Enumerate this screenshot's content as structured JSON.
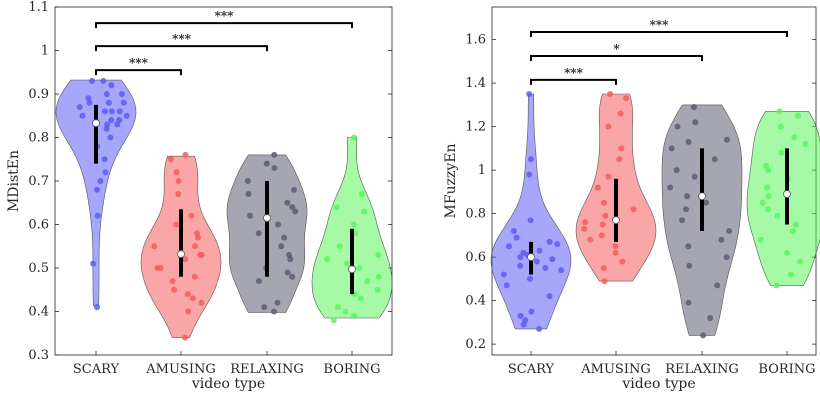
{
  "chart_data": [
    {
      "type": "violin",
      "ylabel": "MDistEn",
      "xlabel": "video type",
      "categories": [
        "SCARY",
        "AMUSING",
        "RELAXING",
        "BORING"
      ],
      "ylim": [
        0.3,
        1.1
      ],
      "yticks": [
        0.3,
        0.4,
        0.5,
        0.6,
        0.7,
        0.8,
        0.9,
        1,
        1.1
      ],
      "ytick_labels": [
        "0.3",
        "0.4",
        "0.5",
        "0.6",
        "0.7",
        "0.8",
        "0.9",
        "1",
        "1.1"
      ],
      "colors": [
        "#5c5cf5",
        "#f55c5c",
        "#5c5c75",
        "#5cf55c"
      ],
      "series": [
        {
          "category": "SCARY",
          "median": 0.833,
          "q1": 0.74,
          "q3": 0.875,
          "min": 0.413,
          "max": 0.932,
          "points": [
            0.83,
            0.86,
            0.85,
            0.9,
            0.92,
            0.93,
            0.88,
            0.84,
            0.82,
            0.86,
            0.8,
            0.87,
            0.84,
            0.88,
            0.83,
            0.89,
            0.9,
            0.83,
            0.75,
            0.72,
            0.7,
            0.78,
            0.62,
            0.68,
            0.51,
            0.41,
            0.86,
            0.93,
            0.85,
            0.88
          ]
        },
        {
          "category": "AMUSING",
          "median": 0.532,
          "q1": 0.48,
          "q3": 0.635,
          "min": 0.34,
          "max": 0.757,
          "points": [
            0.76,
            0.75,
            0.72,
            0.7,
            0.67,
            0.62,
            0.6,
            0.58,
            0.57,
            0.55,
            0.55,
            0.53,
            0.53,
            0.52,
            0.5,
            0.5,
            0.48,
            0.47,
            0.45,
            0.44,
            0.43,
            0.42,
            0.4,
            0.34
          ]
        },
        {
          "category": "RELAXING",
          "median": 0.615,
          "q1": 0.48,
          "q3": 0.7,
          "min": 0.398,
          "max": 0.76,
          "points": [
            0.76,
            0.74,
            0.73,
            0.7,
            0.68,
            0.67,
            0.65,
            0.64,
            0.63,
            0.62,
            0.6,
            0.58,
            0.57,
            0.55,
            0.53,
            0.52,
            0.5,
            0.49,
            0.48,
            0.47,
            0.42,
            0.41,
            0.4
          ]
        },
        {
          "category": "BORING",
          "median": 0.497,
          "q1": 0.44,
          "q3": 0.59,
          "min": 0.385,
          "max": 0.8,
          "points": [
            0.8,
            0.67,
            0.64,
            0.63,
            0.6,
            0.58,
            0.55,
            0.53,
            0.52,
            0.51,
            0.5,
            0.48,
            0.47,
            0.45,
            0.44,
            0.43,
            0.41,
            0.4,
            0.39,
            0.38
          ]
        }
      ],
      "significance": [
        {
          "from": "SCARY",
          "to": "AMUSING",
          "label": "***"
        },
        {
          "from": "SCARY",
          "to": "RELAXING",
          "label": "***"
        },
        {
          "from": "SCARY",
          "to": "BORING",
          "label": "***"
        }
      ]
    },
    {
      "type": "violin",
      "ylabel": "MFuzzyEn",
      "xlabel": "video type",
      "categories": [
        "SCARY",
        "AMUSING",
        "RELAXING",
        "BORING"
      ],
      "ylim": [
        0.15,
        1.75
      ],
      "yticks": [
        0.2,
        0.4,
        0.6,
        0.8,
        1,
        1.2,
        1.4,
        1.6
      ],
      "ytick_labels": [
        "0.2",
        "0.4",
        "0.6",
        "0.8",
        "1",
        "1.2",
        "1.4",
        "1.6"
      ],
      "colors": [
        "#5c5cf5",
        "#f55c5c",
        "#5c5c75",
        "#5cf55c"
      ],
      "series": [
        {
          "category": "SCARY",
          "median": 0.6,
          "q1": 0.52,
          "q3": 0.67,
          "min": 0.27,
          "max": 1.35,
          "points": [
            1.35,
            1.05,
            0.98,
            0.77,
            0.72,
            0.69,
            0.67,
            0.66,
            0.65,
            0.63,
            0.62,
            0.61,
            0.6,
            0.59,
            0.58,
            0.56,
            0.55,
            0.54,
            0.52,
            0.5,
            0.47,
            0.42,
            0.35,
            0.33,
            0.31,
            0.29,
            0.27
          ]
        },
        {
          "category": "AMUSING",
          "median": 0.77,
          "q1": 0.67,
          "q3": 0.96,
          "min": 0.49,
          "max": 1.35,
          "points": [
            1.35,
            1.33,
            1.26,
            1.2,
            1.1,
            1.05,
            0.97,
            0.92,
            0.85,
            0.82,
            0.79,
            0.76,
            0.75,
            0.73,
            0.7,
            0.68,
            0.65,
            0.62,
            0.58,
            0.55,
            0.49
          ]
        },
        {
          "category": "RELAXING",
          "median": 0.88,
          "q1": 0.72,
          "q3": 1.1,
          "min": 0.24,
          "max": 1.3,
          "points": [
            1.29,
            1.22,
            1.2,
            1.14,
            1.13,
            1.1,
            1.05,
            1.0,
            0.97,
            0.92,
            0.88,
            0.85,
            0.82,
            0.77,
            0.72,
            0.68,
            0.65,
            0.6,
            0.56,
            0.47,
            0.39,
            0.32,
            0.24
          ]
        },
        {
          "category": "BORING",
          "median": 0.89,
          "q1": 0.75,
          "q3": 1.1,
          "min": 0.47,
          "max": 1.27,
          "points": [
            1.27,
            1.25,
            1.2,
            1.15,
            1.12,
            1.08,
            1.02,
            1.0,
            0.96,
            0.92,
            0.88,
            0.85,
            0.82,
            0.79,
            0.75,
            0.72,
            0.68,
            0.62,
            0.58,
            0.52,
            0.47
          ]
        }
      ],
      "significance": [
        {
          "from": "SCARY",
          "to": "AMUSING",
          "label": "***"
        },
        {
          "from": "SCARY",
          "to": "RELAXING",
          "label": "*"
        },
        {
          "from": "SCARY",
          "to": "BORING",
          "label": "***"
        }
      ]
    }
  ]
}
